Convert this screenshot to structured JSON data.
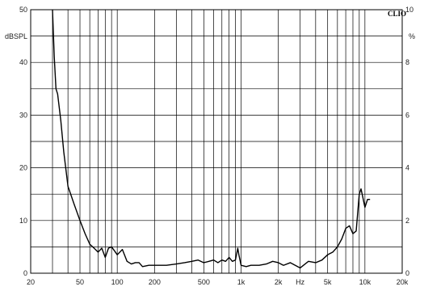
{
  "chart_data": {
    "type": "line",
    "title": "",
    "brand": "CLIO",
    "left_axis": {
      "unit": "dBSPL",
      "ticks": [
        0,
        10,
        20,
        30,
        40,
        50
      ],
      "ylim": [
        0,
        50
      ]
    },
    "right_axis": {
      "unit": "%",
      "ticks": [
        0,
        2,
        4,
        6,
        8,
        10
      ],
      "ylim": [
        0,
        10
      ]
    },
    "x_axis": {
      "unit": "Hz",
      "scale": "log",
      "xlim": [
        20,
        20000
      ],
      "ticks": [
        {
          "value": 20,
          "label": "20"
        },
        {
          "value": 50,
          "label": "50"
        },
        {
          "value": 100,
          "label": "100"
        },
        {
          "value": 200,
          "label": "200"
        },
        {
          "value": 500,
          "label": "500"
        },
        {
          "value": 1000,
          "label": "1k"
        },
        {
          "value": 2000,
          "label": "2k"
        },
        {
          "value": 5000,
          "label": "5k"
        },
        {
          "value": 10000,
          "label": "10k"
        },
        {
          "value": 20000,
          "label": "20k"
        }
      ]
    },
    "grid": true,
    "line_color": "#000000",
    "series": [
      {
        "axis": "right",
        "points": [
          [
            30,
            10
          ],
          [
            31,
            8.2
          ],
          [
            32,
            7.0
          ],
          [
            33,
            6.8
          ],
          [
            35,
            5.8
          ],
          [
            37,
            4.6
          ],
          [
            40,
            3.3
          ],
          [
            45,
            2.6
          ],
          [
            50,
            2.0
          ],
          [
            55,
            1.5
          ],
          [
            60,
            1.1
          ],
          [
            65,
            0.95
          ],
          [
            70,
            0.8
          ],
          [
            75,
            0.95
          ],
          [
            80,
            0.6
          ],
          [
            85,
            0.95
          ],
          [
            90,
            1.0
          ],
          [
            95,
            0.85
          ],
          [
            100,
            0.7
          ],
          [
            110,
            0.9
          ],
          [
            120,
            0.45
          ],
          [
            130,
            0.35
          ],
          [
            140,
            0.4
          ],
          [
            150,
            0.4
          ],
          [
            160,
            0.25
          ],
          [
            180,
            0.3
          ],
          [
            200,
            0.3
          ],
          [
            250,
            0.3
          ],
          [
            300,
            0.35
          ],
          [
            350,
            0.4
          ],
          [
            400,
            0.45
          ],
          [
            450,
            0.5
          ],
          [
            500,
            0.4
          ],
          [
            550,
            0.45
          ],
          [
            600,
            0.5
          ],
          [
            650,
            0.4
          ],
          [
            700,
            0.5
          ],
          [
            750,
            0.45
          ],
          [
            800,
            0.6
          ],
          [
            850,
            0.45
          ],
          [
            900,
            0.5
          ],
          [
            940,
            0.95
          ],
          [
            960,
            0.7
          ],
          [
            1000,
            0.3
          ],
          [
            1100,
            0.25
          ],
          [
            1200,
            0.3
          ],
          [
            1400,
            0.3
          ],
          [
            1600,
            0.35
          ],
          [
            1800,
            0.45
          ],
          [
            2000,
            0.4
          ],
          [
            2200,
            0.3
          ],
          [
            2500,
            0.4
          ],
          [
            3000,
            0.2
          ],
          [
            3500,
            0.45
          ],
          [
            4000,
            0.4
          ],
          [
            4500,
            0.5
          ],
          [
            5000,
            0.7
          ],
          [
            5500,
            0.8
          ],
          [
            6000,
            1.0
          ],
          [
            6500,
            1.3
          ],
          [
            7000,
            1.7
          ],
          [
            7500,
            1.8
          ],
          [
            8000,
            1.5
          ],
          [
            8500,
            1.6
          ],
          [
            9000,
            3.0
          ],
          [
            9300,
            3.2
          ],
          [
            9600,
            2.9
          ],
          [
            10000,
            2.5
          ],
          [
            10500,
            2.8
          ],
          [
            11000,
            2.8
          ]
        ]
      }
    ]
  }
}
